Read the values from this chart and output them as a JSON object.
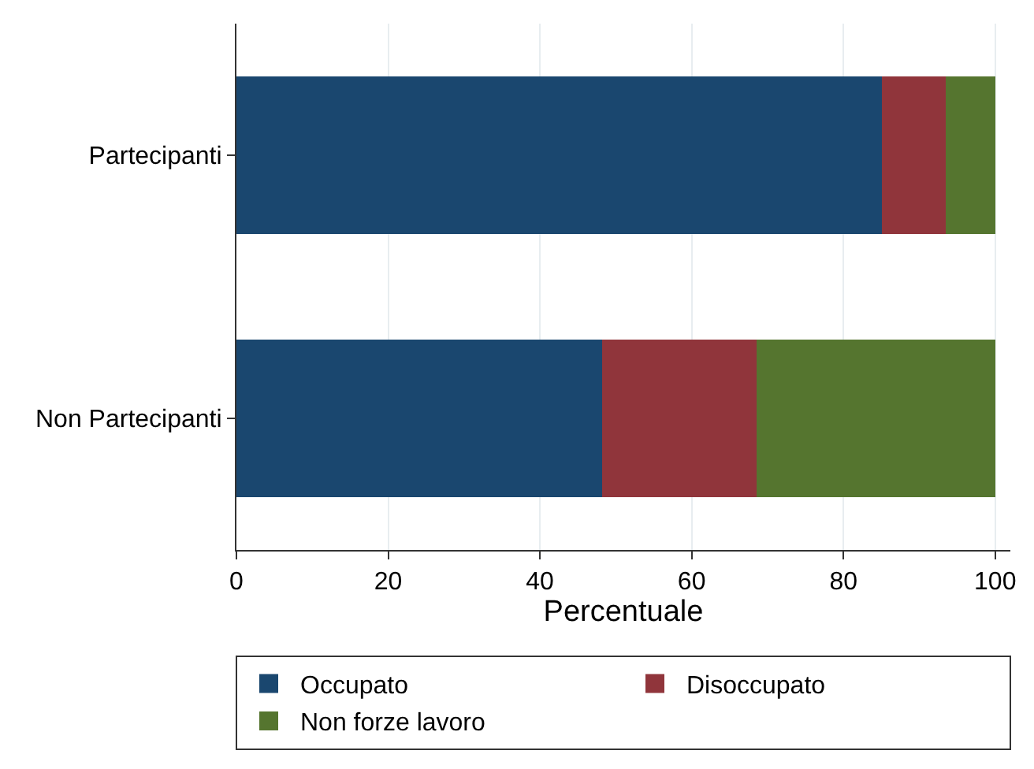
{
  "chart_data": {
    "type": "bar",
    "orientation": "horizontal",
    "stacked": true,
    "xlabel": "Percentuale",
    "categories": [
      "Partecipanti",
      "Non Partecipanti"
    ],
    "series": [
      {
        "name": "Occupato",
        "color": "#1a476f",
        "values": [
          85.1,
          48.2
        ]
      },
      {
        "name": "Disoccupato",
        "color": "#90353b",
        "values": [
          8.4,
          20.4
        ]
      },
      {
        "name": "Non forze lavoro",
        "color": "#55752f",
        "values": [
          6.5,
          31.4
        ]
      }
    ],
    "xlim": [
      0,
      102
    ],
    "xticks": [
      0,
      20,
      40,
      60,
      80,
      100
    ],
    "grid": "x",
    "legend": "bottom"
  }
}
